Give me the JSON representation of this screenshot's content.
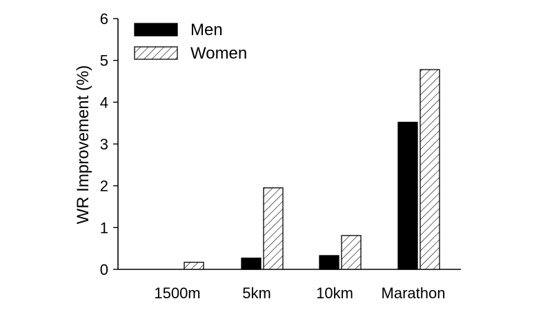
{
  "chart_data": {
    "type": "bar",
    "title": "",
    "xlabel": "",
    "ylabel": "WR Improvement (%)",
    "ylim": [
      0,
      6
    ],
    "yticks": [
      0,
      1,
      2,
      3,
      4,
      5,
      6
    ],
    "categories": [
      "1500m",
      "5km",
      "10km",
      "Marathon"
    ],
    "series": [
      {
        "name": "Men",
        "values": [
          0.0,
          0.27,
          0.33,
          3.52
        ],
        "fill": "#000000",
        "pattern": "solid"
      },
      {
        "name": "Women",
        "values": [
          0.17,
          1.95,
          0.81,
          4.78
        ],
        "fill": "#ffffff",
        "pattern": "hatch"
      }
    ],
    "legend_position": "top-left",
    "grid": false
  }
}
